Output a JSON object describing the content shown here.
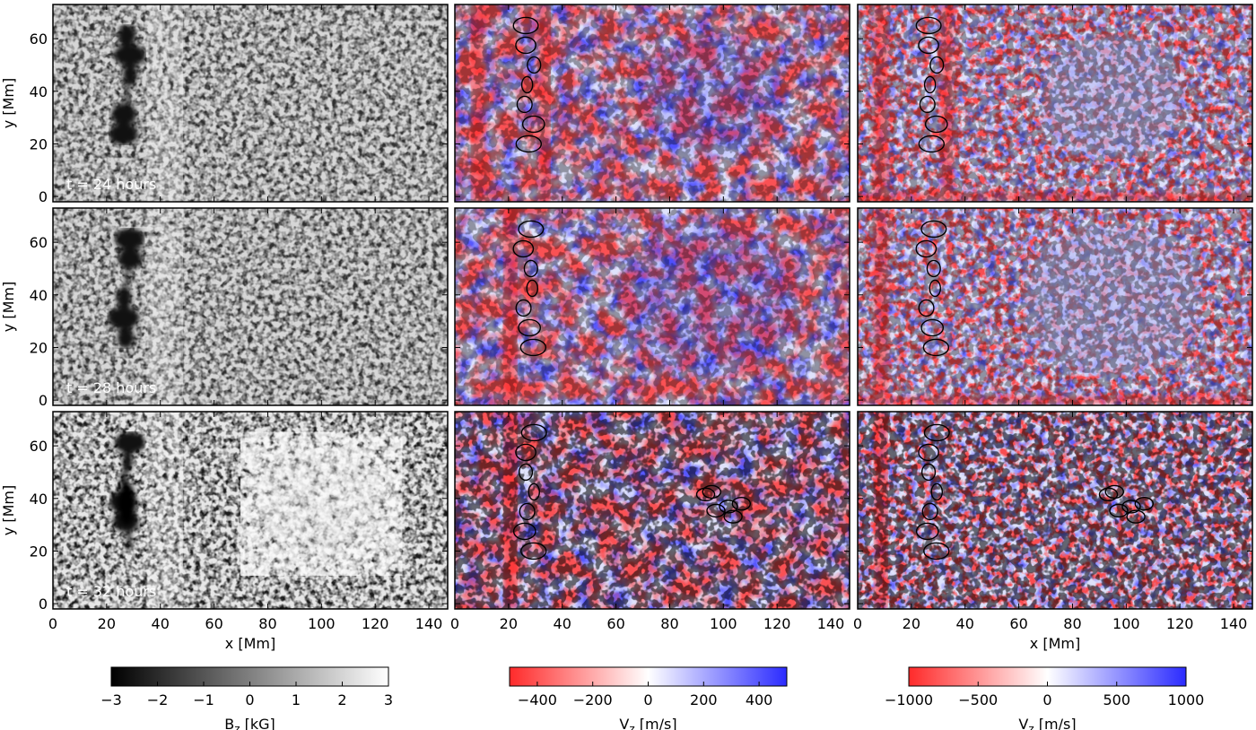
{
  "chart_data": {
    "type": "heatmap",
    "layout": "3 rows x 3 columns of image panels",
    "x_axis": {
      "label": "x [Mm]",
      "range": [
        0,
        147
      ],
      "ticks": [
        0,
        20,
        40,
        60,
        80,
        100,
        120,
        140
      ]
    },
    "y_axis": {
      "label": "y [Mm]",
      "range": [
        -2,
        73
      ],
      "ticks": [
        0,
        20,
        40,
        60
      ]
    },
    "rows": [
      {
        "time_label": "t = 24 hours"
      },
      {
        "time_label": "t = 28 hours"
      },
      {
        "time_label": "t = 32 hours"
      }
    ],
    "columns": [
      {
        "quantity": "Bz [kG]",
        "colorbar_label": "B_z [kG]",
        "colorbar_label_main": "B",
        "colorbar_label_sub": "z",
        "colorbar_label_rest": " [kG]",
        "colormap": [
          "#000000",
          "#ffffff"
        ],
        "range": [
          -3,
          3
        ],
        "ticks": [
          "−3",
          "−2",
          "−1",
          "0",
          "1",
          "2",
          "3"
        ],
        "contours": false
      },
      {
        "quantity": "Vz [m/s]",
        "colorbar_label": "V_z [m/s]",
        "colorbar_label_main": "V",
        "colorbar_label_sub": "z",
        "colorbar_label_rest": " [m/s]",
        "colormap": [
          "#ff2a2a",
          "#ffffff",
          "#2b2bff"
        ],
        "range": [
          -500,
          500
        ],
        "ticks": [
          "−400",
          "−200",
          "0",
          "200",
          "400"
        ],
        "tick_values": [
          -400,
          -200,
          0,
          200,
          400
        ],
        "contours": true
      },
      {
        "quantity": "Vz [m/s]",
        "colorbar_label": "V_z [m/s]",
        "colorbar_label_main": "V",
        "colorbar_label_sub": "z",
        "colorbar_label_rest": " [m/s]",
        "colormap": [
          "#ff2a2a",
          "#ffffff",
          "#2b2bff"
        ],
        "range": [
          -1000,
          1000
        ],
        "ticks": [
          "−1000",
          "−500",
          "0",
          "500",
          "1000"
        ],
        "tick_values": [
          -1000,
          -500,
          0,
          500,
          1000
        ],
        "contours": true
      }
    ],
    "features": {
      "sunspot_x_range_Mm": [
        20,
        35
      ],
      "sunspot_y_range_Mm": [
        20,
        65
      ],
      "outflow_center_t24_Mm": [
        95,
        38
      ],
      "emergence_center_t32_Mm": [
        100,
        38
      ]
    }
  }
}
